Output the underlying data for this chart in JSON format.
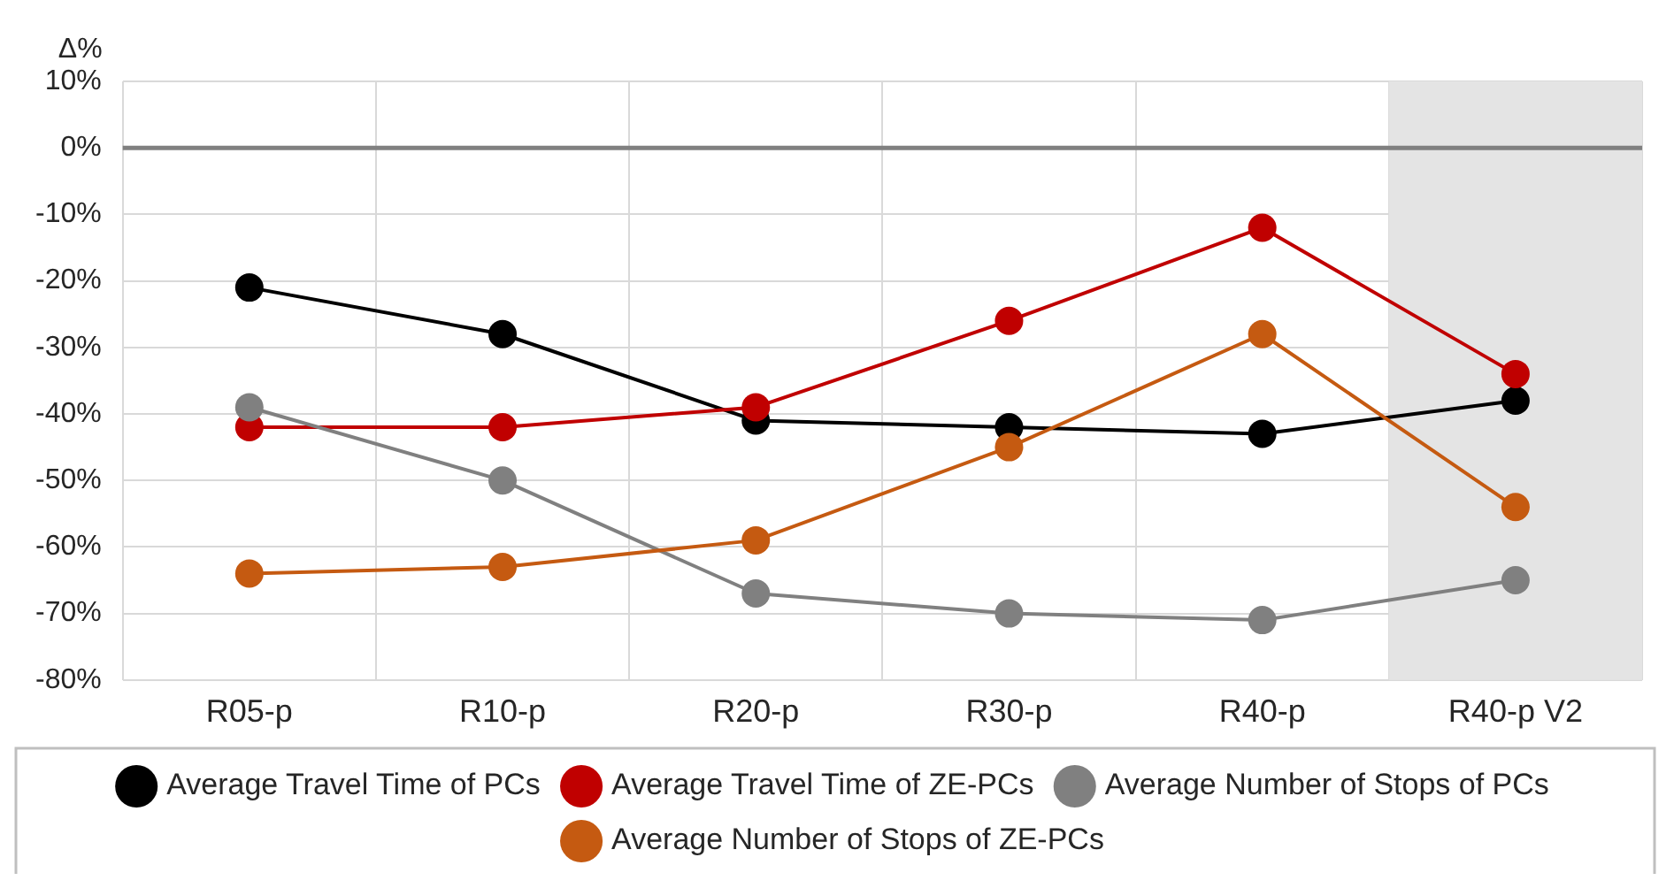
{
  "chart_data": {
    "type": "line",
    "ylabel": "Δ%",
    "categories": [
      "R05-p",
      "R10-p",
      "R20-p",
      "R30-p",
      "R40-p",
      "R40-p V2"
    ],
    "series": [
      {
        "name": "Average Travel Time of PCs",
        "color": "#000000",
        "values": [
          -21,
          -28,
          -41,
          -42,
          -43,
          -38
        ]
      },
      {
        "name": "Average Travel Time of ZE-PCs",
        "color": "#c00000",
        "values": [
          -42,
          -42,
          -39,
          -26,
          -12,
          -34
        ]
      },
      {
        "name": "Average Number of Stops of PCs",
        "color": "#808080",
        "values": [
          -39,
          -50,
          -67,
          -70,
          -71,
          -65
        ]
      },
      {
        "name": "Average Number of Stops of ZE-PCs",
        "color": "#c55a11",
        "values": [
          -64,
          -63,
          -59,
          -45,
          -28,
          -54
        ]
      }
    ],
    "ylim": [
      -80,
      10
    ],
    "yticks": [
      {
        "value": -80,
        "label": "-80%"
      },
      {
        "value": -70,
        "label": "-70%"
      },
      {
        "value": -60,
        "label": "-60%"
      },
      {
        "value": -50,
        "label": "-50%"
      },
      {
        "value": -40,
        "label": "-40%"
      },
      {
        "value": -30,
        "label": "-30%"
      },
      {
        "value": -20,
        "label": "-20%"
      },
      {
        "value": -10,
        "label": "-10%"
      },
      {
        "value": 0,
        "label": "0%"
      },
      {
        "value": 10,
        "label": "10%"
      }
    ],
    "ref_lines": [
      {
        "axis": "y",
        "value": 0,
        "color": "#808080"
      }
    ],
    "bands": [
      {
        "axis": "x",
        "from": "R40-p V2",
        "to": "R40-p V2",
        "color": "#e4e4e4"
      }
    ],
    "grid": true,
    "legend": "bottom",
    "marker": "circle",
    "line_style": "solid"
  }
}
